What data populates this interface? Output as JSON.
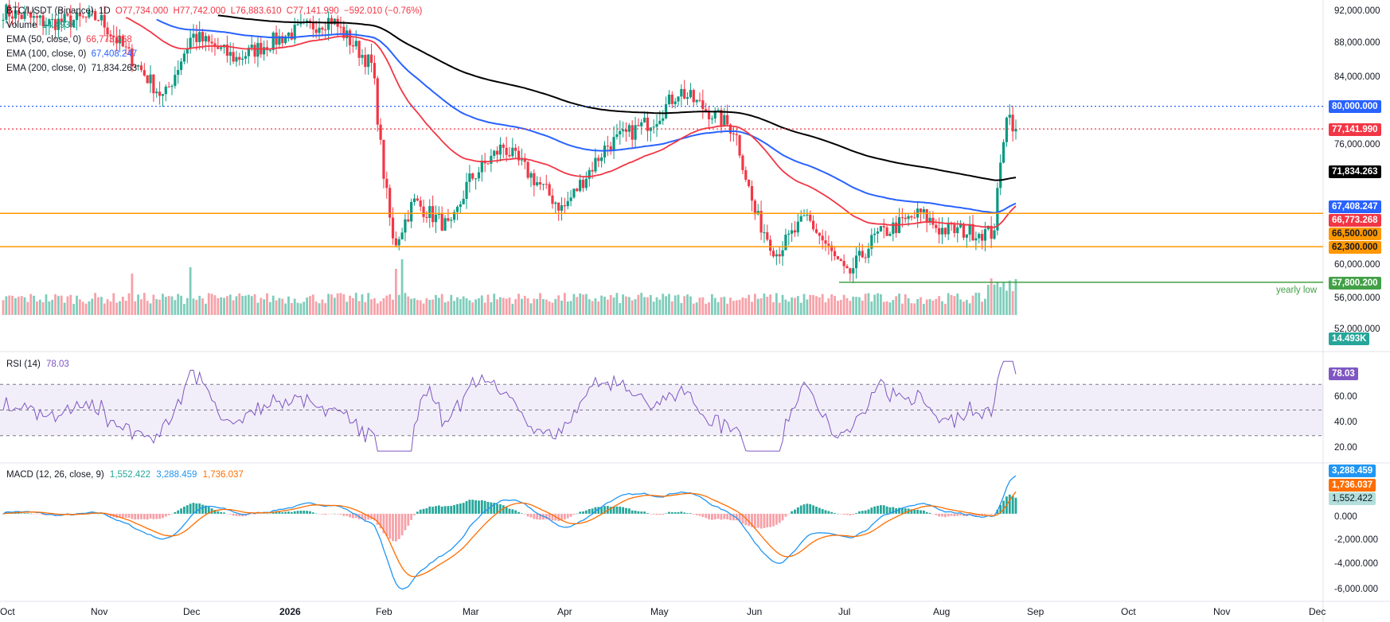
{
  "legend": {
    "symbol": "BTC/USDT (Binance)",
    "interval": "1D",
    "open": "O77,734.000",
    "high": "H77,742.000",
    "low": "L76,883.610",
    "close": "C77,141.990",
    "change": "−592.010 (−0.76%)",
    "volume_label": "Volume",
    "volume_value": "14.493K",
    "ema50_label": "EMA (50, close, 0)",
    "ema50_value": "66,773.268",
    "ema100_label": "EMA (100, close, 0)",
    "ema100_value": "67,408.247",
    "ema200_label": "EMA (200, close, 0)",
    "ema200_value": "71,834.263"
  },
  "rsi_legend": {
    "label": "RSI (14)",
    "value": "78.03"
  },
  "macd_legend": {
    "label": "MACD (12, 26, close, 9)",
    "hist_value": "1,552.422",
    "macd_value": "3,288.459",
    "signal_value": "1,736.037"
  },
  "colors": {
    "up": "#089981",
    "down": "#f23645",
    "ema50": "#f23645",
    "ema100": "#2962ff",
    "ema200": "#000000",
    "hline": "#ff9800",
    "support": "#43a047",
    "rsi": "#7e57c2",
    "macd": "#2196f3",
    "signal": "#ff6d00",
    "hist": "#26a69a"
  },
  "chart_data": [
    {
      "type": "candlestick",
      "title": "BTC/USDT (Binance), 1D",
      "ylim": [
        50000,
        94000
      ],
      "yticks": [
        "92,000.000",
        "88,000.000",
        "84,000.000",
        "76,000.000",
        "60,000.000",
        "56,000.000",
        "52,000.000"
      ],
      "x_labels": [
        "Oct",
        "Nov",
        "Dec",
        "2026",
        "Feb",
        "Mar",
        "Apr",
        "May",
        "Jun",
        "Jul",
        "Aug",
        "Sep",
        "Oct",
        "Nov",
        "Dec"
      ],
      "price_path": [
        {
          "x": "Oct",
          "y": 92000
        },
        {
          "x": "Oct 15",
          "y": 90500
        },
        {
          "x": "Nov",
          "y": 91200
        },
        {
          "x": "Nov 22",
          "y": 81000
        },
        {
          "x": "Dec",
          "y": 89000
        },
        {
          "x": "Dec 15",
          "y": 86000
        },
        {
          "x": "2026",
          "y": 89000
        },
        {
          "x": "Jan 15",
          "y": 91000
        },
        {
          "x": "Jan 28",
          "y": 85000
        },
        {
          "x": "Feb",
          "y": 73000
        },
        {
          "x": "Feb 5",
          "y": 62300
        },
        {
          "x": "Feb 12",
          "y": 68000
        },
        {
          "x": "Feb 25",
          "y": 64500
        },
        {
          "x": "Mar",
          "y": 70500
        },
        {
          "x": "Mar 12",
          "y": 75000
        },
        {
          "x": "Apr",
          "y": 67000
        },
        {
          "x": "Apr 15",
          "y": 75000
        },
        {
          "x": "May",
          "y": 78500
        },
        {
          "x": "May 8",
          "y": 82000
        },
        {
          "x": "May 25",
          "y": 77000
        },
        {
          "x": "Jun",
          "y": 66500
        },
        {
          "x": "Jun 8",
          "y": 61500
        },
        {
          "x": "Jun 18",
          "y": 66000
        },
        {
          "x": "Jul",
          "y": 58500
        },
        {
          "x": "Jul 10",
          "y": 63500
        },
        {
          "x": "Jul 25",
          "y": 66500
        },
        {
          "x": "Aug",
          "y": 64500
        },
        {
          "x": "Aug 18",
          "y": 64000
        },
        {
          "x": "Aug 22",
          "y": 79500
        },
        {
          "x": "Aug 25",
          "y": 77141.99
        }
      ],
      "ema": [
        {
          "name": "EMA (50, close, 0)",
          "last": 66773.268
        },
        {
          "name": "EMA (100, close, 0)",
          "last": 67408.247
        },
        {
          "name": "EMA (200, close, 0)",
          "last": 71834.263
        }
      ],
      "horizontal_lines": [
        {
          "value": 80000,
          "label": "80,000.000",
          "style": "dotted",
          "color": "#2962ff"
        },
        {
          "value": 77141.99,
          "label": "77,141.990",
          "style": "dotted",
          "color": "#f23645"
        },
        {
          "value": 66500,
          "label": "66,500.000",
          "style": "solid",
          "color": "#ff9800"
        },
        {
          "value": 62300,
          "label": "62,300.000",
          "style": "solid",
          "color": "#ff9800"
        },
        {
          "value": 57800.2,
          "label": "57,800.200",
          "style": "solid",
          "color": "#43a047",
          "annotation": "yearly low"
        }
      ],
      "volume_last": "14.493K"
    },
    {
      "type": "line",
      "title": "RSI (14)",
      "ylim": [
        10,
        95
      ],
      "yticks": [
        "60.00",
        "40.00",
        "20.00"
      ],
      "bands": [
        70,
        50,
        30
      ],
      "last": 78.03
    },
    {
      "type": "line",
      "title": "MACD (12, 26, close, 9)",
      "ylim": [
        -7000,
        4000
      ],
      "yticks": [
        "0.000",
        "-2,000.000",
        "-4,000.000",
        "-6,000.000"
      ],
      "series": [
        {
          "name": "MACD",
          "last": 3288.459
        },
        {
          "name": "Signal",
          "last": 1736.037
        },
        {
          "name": "Histogram",
          "last": 1552.422
        }
      ]
    }
  ],
  "price_badges": {
    "ema200": "71,834.263",
    "ema100": "67,408.247",
    "ema50": "66,773.268",
    "h80000": "80,000.000",
    "last_price": "77,141.990",
    "h66500": "66,500.000",
    "h62300": "62,300.000",
    "yearly_low": "57,800.200",
    "volume": "14.493K",
    "rsi": "78.03",
    "macd": "3,288.459",
    "signal": "1,736.037",
    "hist": "1,552.422"
  },
  "annotations": {
    "yearly_low": "yearly low"
  }
}
